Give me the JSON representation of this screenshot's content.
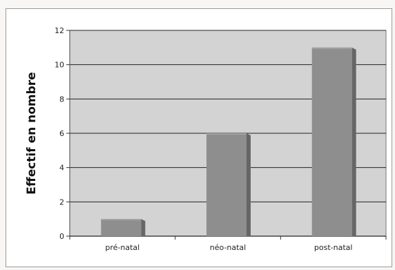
{
  "chart_data": {
    "type": "bar",
    "title": "",
    "xlabel": "",
    "ylabel": "Effectif en nombre",
    "categories": [
      "pré-natal",
      "néo-natal",
      "post-natal"
    ],
    "values": [
      1,
      6,
      11
    ],
    "ylim": [
      0,
      12
    ],
    "yticks": [
      0,
      2,
      4,
      6,
      8,
      10,
      12
    ],
    "grid": true,
    "legend": "none",
    "colors": {
      "bar_front": "#8e8e8e",
      "bar_side": "#666666",
      "bar_top": "#a2a2a2",
      "plot_background": "#d3d3d3",
      "gridline": "#222222"
    }
  }
}
